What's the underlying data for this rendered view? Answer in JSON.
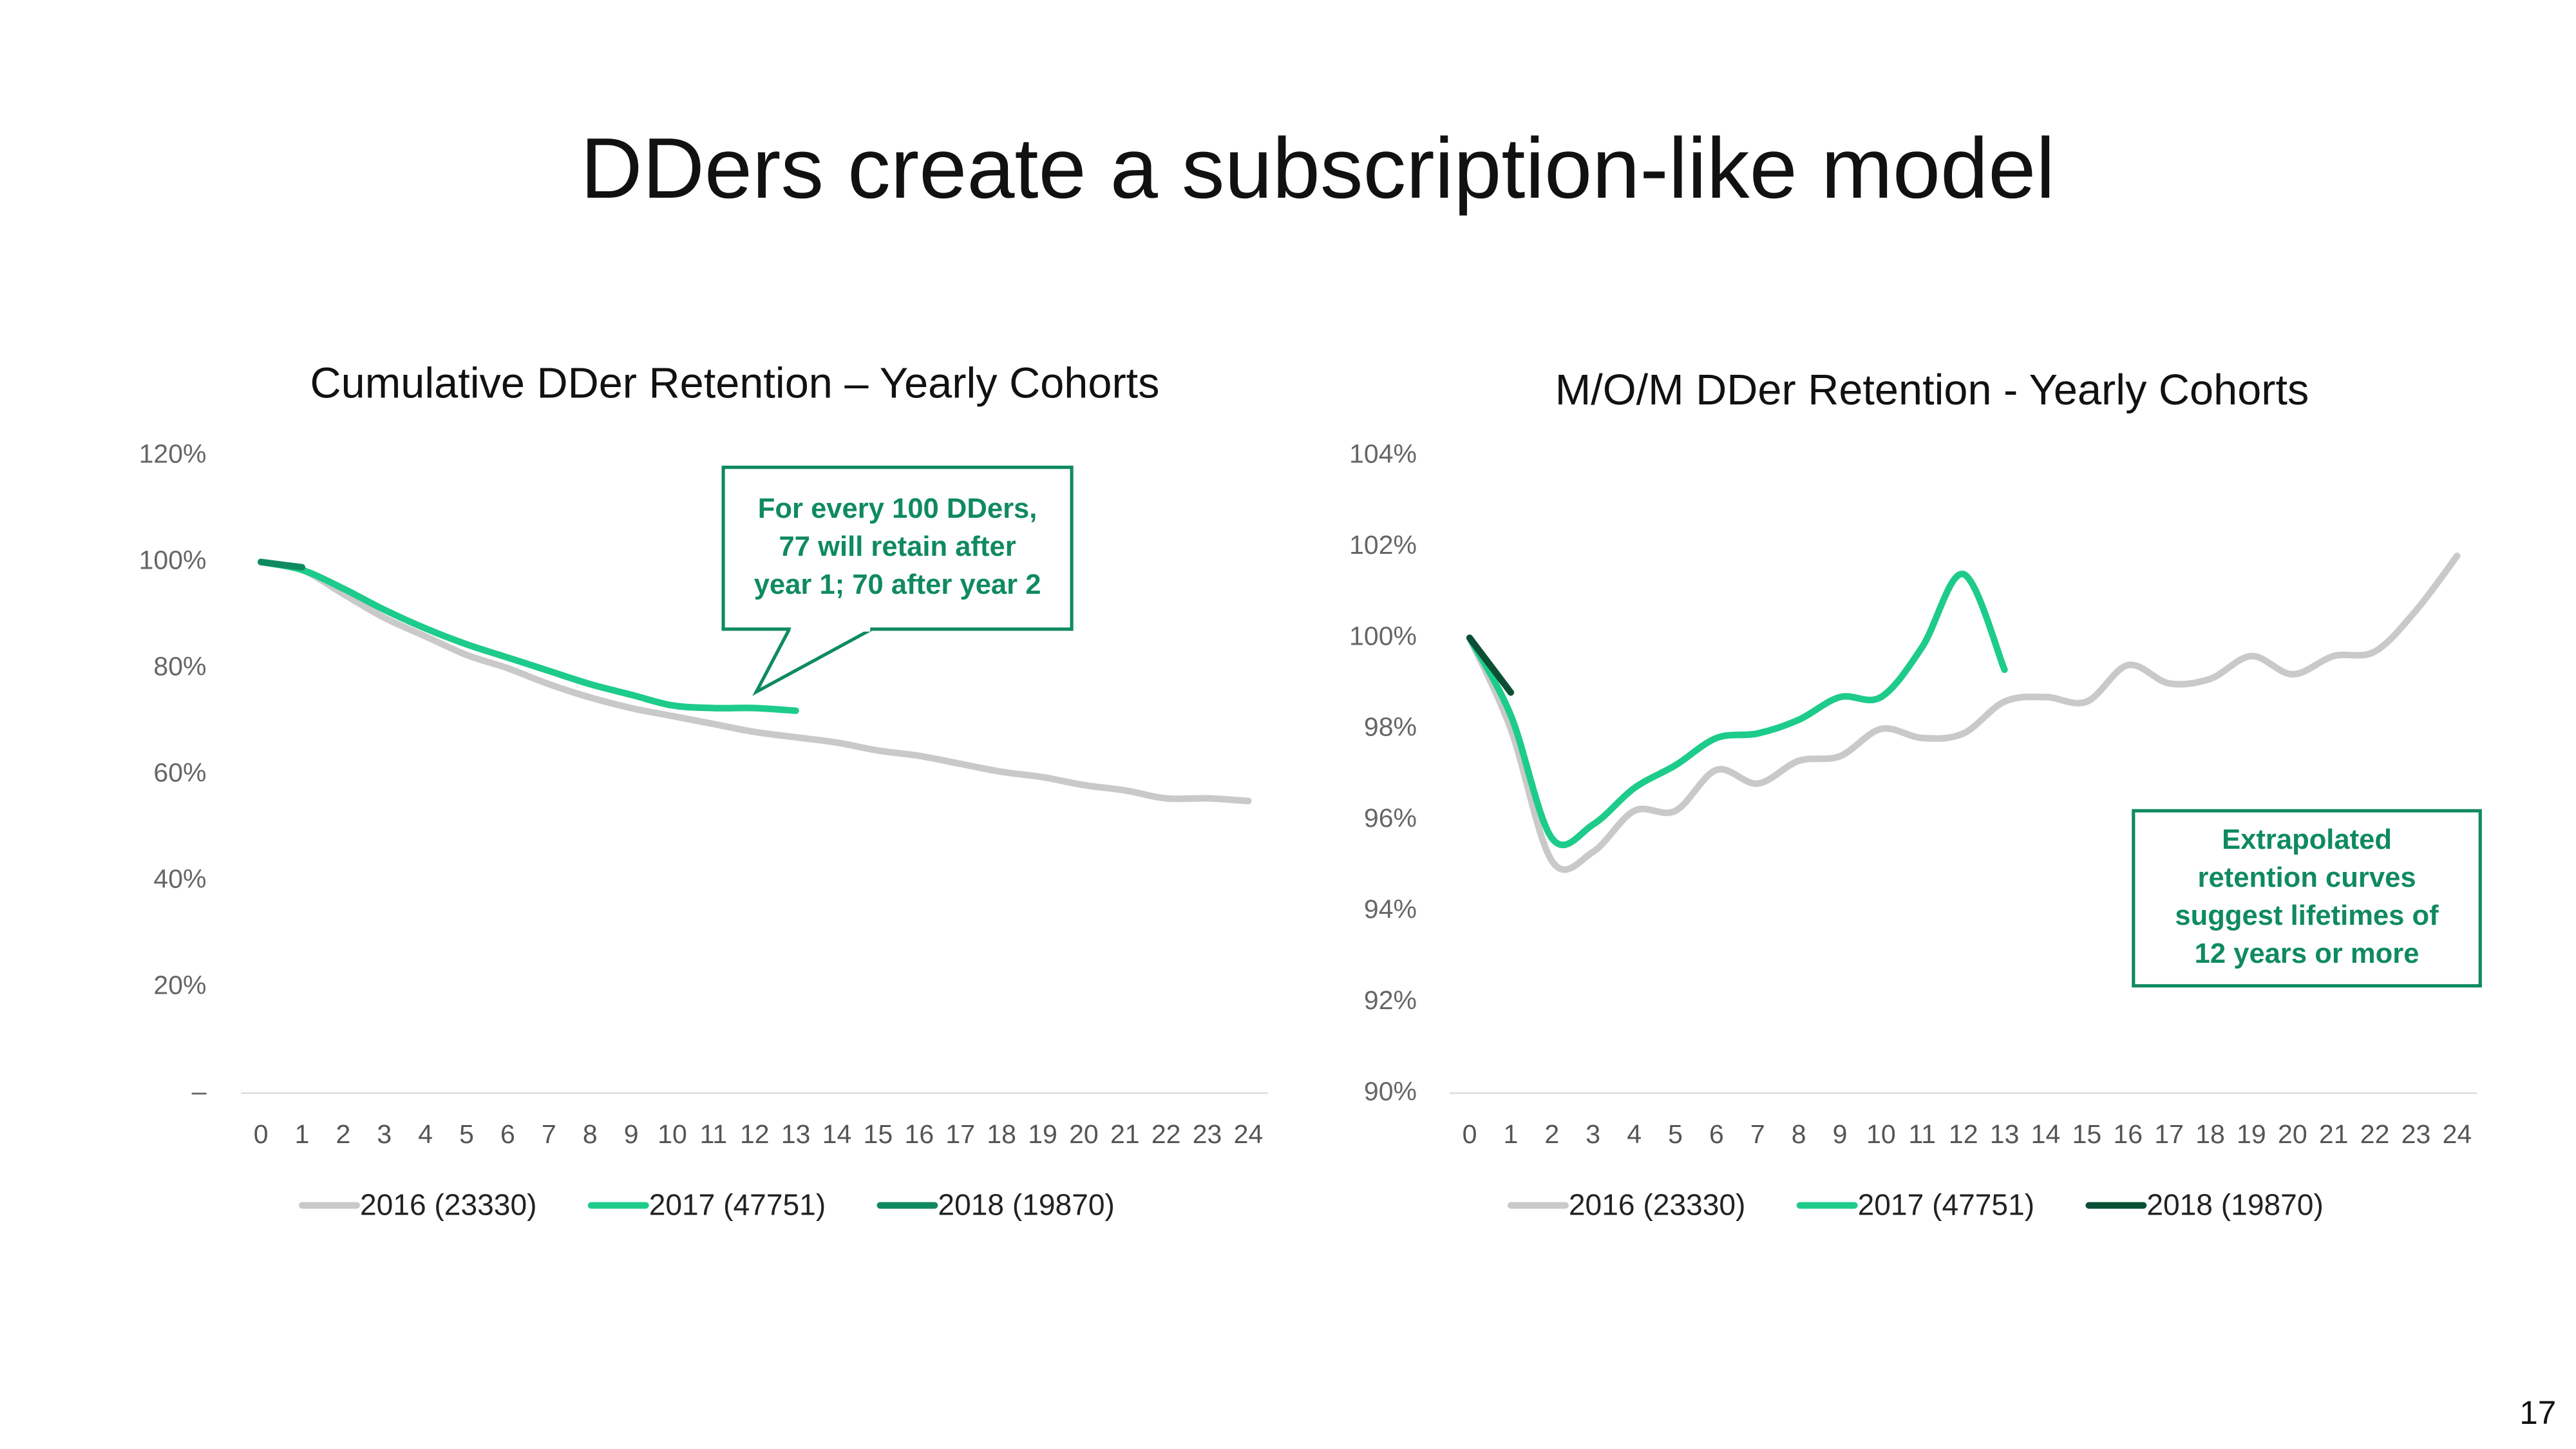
{
  "title": "DDers create a subscription-like model",
  "page_number": "17",
  "chart_data": [
    {
      "type": "line",
      "title": "Cumulative DDer Retention – Yearly Cohorts",
      "x": [
        0,
        1,
        2,
        3,
        4,
        5,
        6,
        7,
        8,
        9,
        10,
        11,
        12,
        13,
        14,
        15,
        16,
        17,
        18,
        19,
        20,
        21,
        22,
        23,
        24
      ],
      "xlim": [
        0,
        24
      ],
      "xticks": [
        0,
        1,
        2,
        3,
        4,
        5,
        6,
        7,
        8,
        9,
        10,
        11,
        12,
        13,
        14,
        15,
        16,
        17,
        18,
        19,
        20,
        21,
        22,
        23,
        24
      ],
      "ylim": [
        0,
        120
      ],
      "yticks": [
        {
          "value": 0,
          "label": "–"
        },
        {
          "value": 20,
          "label": "20%"
        },
        {
          "value": 40,
          "label": "40%"
        },
        {
          "value": 60,
          "label": "60%"
        },
        {
          "value": 80,
          "label": "80%"
        },
        {
          "value": 100,
          "label": "100%"
        },
        {
          "value": 120,
          "label": "120%"
        }
      ],
      "grid": false,
      "legend": "bottom",
      "annotation": [
        "For every 100 DDers,",
        "77 will retain after",
        "year 1; 70 after year 2"
      ],
      "series": [
        {
          "name": "2016 (23330)",
          "color": "#c9c9c9",
          "values": [
            100,
            98.5,
            94,
            89.5,
            86,
            82.5,
            80,
            77,
            74.5,
            72.5,
            71,
            69.5,
            68,
            67,
            66,
            64.5,
            63.5,
            62,
            60.5,
            59.5,
            58,
            57,
            55.5,
            55.5,
            55
          ]
        },
        {
          "name": "2017 (47751)",
          "color": "#1dcb8b",
          "values": [
            100,
            98.5,
            95,
            91,
            87.5,
            84.5,
            82,
            79.5,
            77,
            75,
            73,
            72.5,
            72.5,
            72,
            null,
            null,
            null,
            null,
            null,
            null,
            null,
            null,
            null,
            null,
            null
          ]
        },
        {
          "name": "2018 (19870)",
          "color": "#0f8a5f",
          "values": [
            100,
            99,
            null,
            null,
            null,
            null,
            null,
            null,
            null,
            null,
            null,
            null,
            null,
            null,
            null,
            null,
            null,
            null,
            null,
            null,
            null,
            null,
            null,
            null,
            null
          ]
        }
      ]
    },
    {
      "type": "line",
      "title": "M/O/M DDer Retention - Yearly Cohorts",
      "x": [
        0,
        1,
        2,
        3,
        4,
        5,
        6,
        7,
        8,
        9,
        10,
        11,
        12,
        13,
        14,
        15,
        16,
        17,
        18,
        19,
        20,
        21,
        22,
        23,
        24
      ],
      "xlim": [
        0,
        24
      ],
      "xticks": [
        0,
        1,
        2,
        3,
        4,
        5,
        6,
        7,
        8,
        9,
        10,
        11,
        12,
        13,
        14,
        15,
        16,
        17,
        18,
        19,
        20,
        21,
        22,
        23,
        24
      ],
      "ylim": [
        90,
        104
      ],
      "yticks": [
        {
          "value": 90,
          "label": "90%"
        },
        {
          "value": 92,
          "label": "92%"
        },
        {
          "value": 94,
          "label": "94%"
        },
        {
          "value": 96,
          "label": "96%"
        },
        {
          "value": 98,
          "label": "98%"
        },
        {
          "value": 100,
          "label": "100%"
        },
        {
          "value": 102,
          "label": "102%"
        },
        {
          "value": 104,
          "label": "104%"
        }
      ],
      "grid": false,
      "legend": "bottom",
      "annotation": [
        "Extrapolated",
        "retention curves",
        "suggest lifetimes of",
        "12 years or more"
      ],
      "series": [
        {
          "name": "2016 (23330)",
          "color": "#c9c9c9",
          "values": [
            100,
            98,
            95.1,
            95.3,
            96.2,
            96.2,
            97.1,
            96.8,
            97.3,
            97.4,
            98,
            97.8,
            97.9,
            98.6,
            98.7,
            98.6,
            99.4,
            99,
            99.1,
            99.6,
            99.2,
            99.6,
            99.7,
            100.6,
            101.8
          ]
        },
        {
          "name": "2017 (47751)",
          "color": "#1dcb8b",
          "values": [
            100,
            98.3,
            95.6,
            95.9,
            96.7,
            97.2,
            97.8,
            97.9,
            98.2,
            98.7,
            98.7,
            99.8,
            101.4,
            99.3,
            null,
            null,
            null,
            null,
            null,
            null,
            null,
            null,
            null,
            null,
            null
          ]
        },
        {
          "name": "2018 (19870)",
          "color": "#0b4f35",
          "values": [
            100,
            98.8,
            null,
            null,
            null,
            null,
            null,
            null,
            null,
            null,
            null,
            null,
            null,
            null,
            null,
            null,
            null,
            null,
            null,
            null,
            null,
            null,
            null,
            null,
            null
          ]
        }
      ]
    }
  ]
}
